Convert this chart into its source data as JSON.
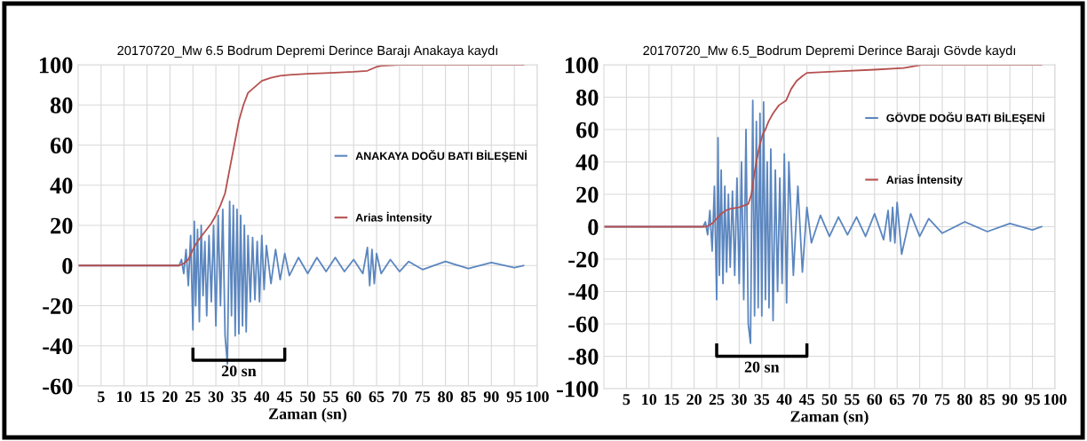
{
  "chart_data": [
    {
      "type": "line",
      "title": "20170720_Mw 6.5 Bodrum Depremi Derince Barajı Anakaya kaydı",
      "xlabel": "Zaman (sn)",
      "xlim": [
        0,
        100
      ],
      "xticks": [
        5,
        10,
        15,
        20,
        25,
        30,
        35,
        40,
        45,
        50,
        55,
        60,
        65,
        70,
        75,
        80,
        85,
        90,
        95,
        100
      ],
      "ylim": [
        -60,
        100
      ],
      "yticks": [
        -60,
        -40,
        -20,
        0,
        20,
        40,
        60,
        80,
        100
      ],
      "grid": true,
      "legend": "right",
      "annotations": [
        "20 sn"
      ],
      "series": [
        {
          "name": "ANAKAYA DOĞU BATI BİLEŞENİ",
          "color": "#5b86bf",
          "x": [
            0,
            22,
            22.5,
            23,
            23.5,
            24,
            24.5,
            25,
            25.3,
            25.6,
            26,
            26.4,
            26.8,
            27.2,
            27.6,
            28,
            28.5,
            29,
            29.5,
            30,
            30.5,
            31,
            31.5,
            32,
            32.5,
            33,
            33.4,
            33.8,
            34.2,
            34.6,
            35,
            35.4,
            35.8,
            36.2,
            36.6,
            37,
            37.5,
            38,
            38.5,
            39,
            39.5,
            40,
            40.5,
            41,
            42,
            43,
            44,
            45,
            46,
            48,
            50,
            52,
            54,
            56,
            58,
            60,
            62,
            63,
            63.5,
            64,
            64.5,
            65,
            66,
            68,
            70,
            72,
            75,
            80,
            85,
            90,
            95,
            97
          ],
          "values": [
            0,
            0,
            3,
            -4,
            8,
            -10,
            15,
            -32,
            22,
            -20,
            18,
            -28,
            20,
            -15,
            12,
            -25,
            15,
            -18,
            20,
            -30,
            25,
            -20,
            28,
            -35,
            -49,
            32,
            -25,
            30,
            -35,
            28,
            -34,
            25,
            -30,
            20,
            -33,
            15,
            -18,
            14,
            -17,
            12,
            -18,
            15,
            -12,
            10,
            -9,
            8,
            -7,
            6,
            -5,
            4,
            -4,
            4,
            -3,
            4,
            -3,
            3,
            -4,
            9,
            -10,
            8,
            -9,
            6,
            -4,
            3,
            -3,
            2,
            -2,
            2,
            -1.5,
            1.5,
            -1,
            0
          ]
        },
        {
          "name": "Arias İntensity",
          "color": "#b5504f",
          "x": [
            0,
            22,
            23,
            24,
            25,
            26,
            27,
            28,
            29,
            30,
            31,
            32,
            32.5,
            33,
            34,
            35,
            36,
            37,
            38,
            39,
            40,
            42,
            44,
            46,
            50,
            55,
            60,
            63,
            65,
            66,
            70,
            80,
            97
          ],
          "values": [
            0,
            0,
            1,
            3,
            8,
            12,
            15,
            18,
            21,
            25,
            30,
            36,
            42,
            48,
            60,
            72,
            80,
            86,
            88,
            90,
            92,
            93.5,
            94.5,
            95,
            95.5,
            96,
            96.5,
            97,
            99,
            99.5,
            100,
            100,
            100
          ]
        }
      ]
    },
    {
      "type": "line",
      "title": "20170720_Mw 6.5_Bodrum Depremi Derince Barajı Gövde kaydı",
      "xlabel": "Zaman (sn)",
      "xlim": [
        0,
        100
      ],
      "xticks": [
        5,
        10,
        15,
        20,
        25,
        30,
        35,
        40,
        45,
        50,
        55,
        60,
        65,
        70,
        75,
        80,
        85,
        90,
        95,
        100
      ],
      "ylim": [
        -100,
        100
      ],
      "yticks": [
        -100,
        -80,
        -60,
        -40,
        -20,
        0,
        20,
        40,
        60,
        80,
        100
      ],
      "grid": true,
      "legend": "right",
      "annotations": [
        "20 sn"
      ],
      "series": [
        {
          "name": "GÖVDE DOĞU BATI BİLEŞENİ",
          "color": "#5b86bf",
          "x": [
            0,
            22,
            22.5,
            23,
            23.5,
            24,
            24.5,
            25,
            25.3,
            25.6,
            26,
            26.4,
            26.8,
            27.2,
            27.6,
            28,
            28.5,
            29,
            29.5,
            30,
            30.5,
            31,
            31.5,
            32,
            32.5,
            33,
            33.4,
            33.8,
            34.2,
            34.6,
            35,
            35.4,
            35.8,
            36.2,
            36.6,
            37,
            37.5,
            38,
            38.5,
            39,
            39.5,
            40,
            40.5,
            41,
            42,
            43,
            44,
            45,
            46,
            48,
            50,
            52,
            54,
            56,
            58,
            60,
            62,
            63,
            63.5,
            64,
            64.5,
            65,
            66,
            68,
            70,
            72,
            75,
            80,
            85,
            90,
            95,
            97
          ],
          "values": [
            0,
            0,
            3,
            -5,
            10,
            -15,
            25,
            -45,
            55,
            -30,
            35,
            -35,
            25,
            -28,
            20,
            -25,
            22,
            -30,
            30,
            -35,
            40,
            -45,
            60,
            -60,
            -72,
            78,
            -55,
            65,
            -50,
            70,
            -55,
            77,
            -45,
            40,
            -50,
            48,
            -58,
            35,
            -40,
            30,
            -35,
            45,
            -47,
            40,
            -30,
            25,
            -28,
            12,
            -10,
            7,
            -6,
            6,
            -5,
            6,
            -6,
            8,
            -8,
            10,
            -9,
            12,
            -10,
            15,
            -17,
            8,
            -6,
            5,
            -4,
            3,
            -3,
            2,
            -2,
            0
          ]
        },
        {
          "name": "Arias İntensity",
          "color": "#b5504f",
          "x": [
            0,
            22.7,
            24,
            25,
            26,
            27,
            28,
            30,
            32,
            32.7,
            33.2,
            33.8,
            34.5,
            35.2,
            35.8,
            36.5,
            37.5,
            38.8,
            40.4,
            41.5,
            42.7,
            44,
            45,
            52,
            60,
            66.5,
            70.4,
            80,
            97
          ],
          "values": [
            0,
            0,
            2,
            5,
            8,
            10,
            11,
            12,
            14,
            20,
            30,
            40,
            50,
            57,
            60,
            65,
            70,
            75,
            78,
            85,
            90,
            93,
            95,
            96,
            97,
            98,
            100,
            100,
            100
          ]
        }
      ]
    }
  ]
}
